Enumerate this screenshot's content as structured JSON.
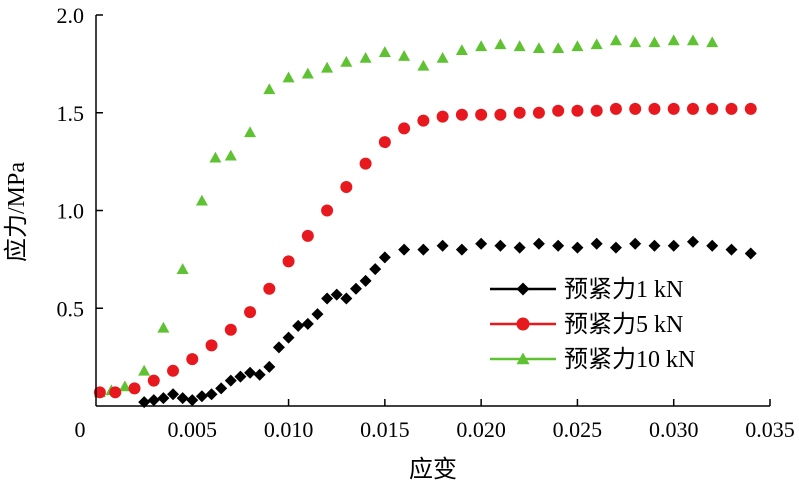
{
  "chart_data": {
    "type": "scatter",
    "title": "",
    "xlabel": "应变",
    "ylabel": "应力/MPa",
    "xlim": [
      0,
      0.035
    ],
    "ylim": [
      0,
      2.0
    ],
    "x_ticks": [
      "0.005",
      "0.010",
      "0.015",
      "0.020",
      "0.025",
      "0.030",
      "0.035"
    ],
    "y_ticks": [
      "0.5",
      "1.0",
      "1.5",
      "2.0"
    ],
    "origin_label": "0",
    "legend_position": "bottom-right",
    "grid": false,
    "series": [
      {
        "name": "预紧力1 kN",
        "color": "#000000",
        "marker": "diamond",
        "x": [
          0.0025,
          0.003,
          0.0035,
          0.004,
          0.0045,
          0.005,
          0.0055,
          0.006,
          0.0065,
          0.007,
          0.0075,
          0.008,
          0.0085,
          0.009,
          0.0095,
          0.01,
          0.0105,
          0.011,
          0.0115,
          0.012,
          0.0125,
          0.013,
          0.0135,
          0.014,
          0.0145,
          0.015,
          0.016,
          0.017,
          0.018,
          0.019,
          0.02,
          0.021,
          0.022,
          0.023,
          0.024,
          0.025,
          0.026,
          0.027,
          0.028,
          0.029,
          0.03,
          0.031,
          0.032,
          0.033,
          0.034
        ],
        "y": [
          0.02,
          0.03,
          0.04,
          0.06,
          0.04,
          0.03,
          0.05,
          0.06,
          0.09,
          0.13,
          0.15,
          0.17,
          0.16,
          0.2,
          0.3,
          0.35,
          0.41,
          0.42,
          0.47,
          0.55,
          0.57,
          0.55,
          0.6,
          0.64,
          0.7,
          0.76,
          0.8,
          0.8,
          0.82,
          0.8,
          0.83,
          0.82,
          0.81,
          0.83,
          0.82,
          0.81,
          0.83,
          0.81,
          0.83,
          0.82,
          0.82,
          0.84,
          0.82,
          0.8,
          0.78
        ]
      },
      {
        "name": "预紧力5 kN",
        "color": "#e8191e",
        "marker": "circle",
        "x": [
          0.0002,
          0.001,
          0.002,
          0.003,
          0.004,
          0.005,
          0.006,
          0.007,
          0.008,
          0.009,
          0.01,
          0.011,
          0.012,
          0.013,
          0.014,
          0.015,
          0.016,
          0.017,
          0.018,
          0.019,
          0.02,
          0.021,
          0.022,
          0.023,
          0.024,
          0.025,
          0.026,
          0.027,
          0.028,
          0.029,
          0.03,
          0.031,
          0.032,
          0.033,
          0.034
        ],
        "y": [
          0.07,
          0.07,
          0.09,
          0.13,
          0.18,
          0.24,
          0.31,
          0.39,
          0.48,
          0.6,
          0.74,
          0.87,
          1.0,
          1.12,
          1.24,
          1.35,
          1.42,
          1.46,
          1.48,
          1.49,
          1.49,
          1.49,
          1.5,
          1.5,
          1.51,
          1.51,
          1.51,
          1.52,
          1.52,
          1.52,
          1.52,
          1.52,
          1.52,
          1.52,
          1.52
        ]
      },
      {
        "name": "预紧力10 kN",
        "color": "#5fc232",
        "marker": "triangle",
        "x": [
          0.0002,
          0.0008,
          0.0015,
          0.0025,
          0.0035,
          0.0045,
          0.0055,
          0.0062,
          0.007,
          0.008,
          0.009,
          0.01,
          0.011,
          0.012,
          0.013,
          0.014,
          0.015,
          0.016,
          0.017,
          0.018,
          0.019,
          0.02,
          0.021,
          0.022,
          0.023,
          0.024,
          0.025,
          0.026,
          0.027,
          0.028,
          0.029,
          0.03,
          0.031,
          0.032
        ],
        "y": [
          0.07,
          0.08,
          0.1,
          0.18,
          0.4,
          0.7,
          1.05,
          1.27,
          1.28,
          1.4,
          1.62,
          1.68,
          1.7,
          1.73,
          1.76,
          1.78,
          1.81,
          1.79,
          1.74,
          1.78,
          1.82,
          1.84,
          1.85,
          1.84,
          1.83,
          1.83,
          1.84,
          1.85,
          1.87,
          1.86,
          1.86,
          1.87,
          1.87,
          1.86
        ]
      }
    ]
  }
}
